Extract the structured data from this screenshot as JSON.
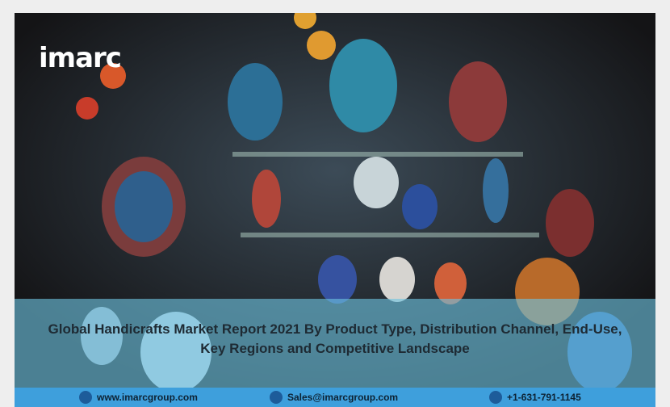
{
  "logo": "imarc",
  "title": "Global Handicrafts Market Report 2021 By Product Type, Distribution Channel, End-Use, Key Regions and Competitive Landscape",
  "footer": {
    "website": "www.imarcgroup.com",
    "email": "Sales@imarcgroup.com",
    "phone": "+1-631-791-1145"
  }
}
